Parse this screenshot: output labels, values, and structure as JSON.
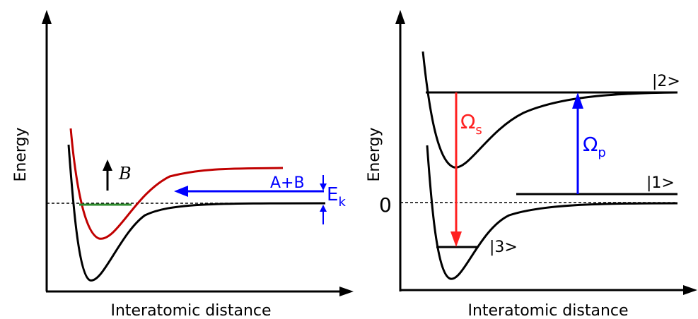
{
  "left_panel": {
    "y_axis_label": "Energy",
    "x_axis_label": "Interatomic distance",
    "field_label": "B",
    "channel_label": "A+B",
    "energy_label": "E",
    "energy_subscript": "k",
    "colors": {
      "curve_closed": "#000000",
      "curve_open": "#c00000",
      "bound_level": "#2e8b2e",
      "arrows": "#0000ff"
    }
  },
  "right_panel": {
    "y_axis_label": "Energy",
    "x_axis_label": "Interatomic distance",
    "zero_label": "0",
    "state_2_label": "|2>",
    "state_1_label": "|1>",
    "state_3_label": "|3>",
    "stokes_symbol": "Ω",
    "stokes_subscript": "s",
    "pump_symbol": "Ω",
    "pump_subscript": "p",
    "colors": {
      "stokes": "#ff2020",
      "pump": "#0000ff",
      "curves": "#000000"
    }
  }
}
